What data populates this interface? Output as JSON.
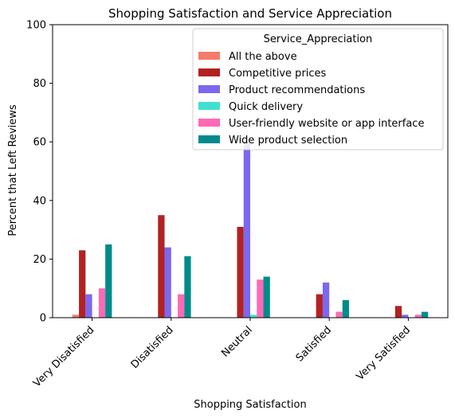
{
  "chart_data": {
    "type": "bar",
    "title": "Shopping Satisfaction and Service Appreciation",
    "xlabel": "Shopping Satisfaction",
    "ylabel": "Percent that Left Reviews",
    "ylim": [
      0,
      100
    ],
    "yticks": [
      0,
      20,
      40,
      60,
      80,
      100
    ],
    "grid": false,
    "categories": [
      "Very Disatisfied",
      "Disatisfied",
      "Neutral",
      "Satisfied",
      "Very Satisfied"
    ],
    "legend": {
      "title": "Service_Appreciation",
      "placement": "top-right"
    },
    "series": [
      {
        "name": "All the above",
        "color": "#f47c6a",
        "values": [
          1,
          0,
          0,
          0,
          0
        ]
      },
      {
        "name": "Competitive prices",
        "color": "#b22222",
        "values": [
          23,
          35,
          31,
          8,
          4
        ]
      },
      {
        "name": "Product recommendations",
        "color": "#7b68ee",
        "values": [
          8,
          24,
          60,
          12,
          1
        ]
      },
      {
        "name": "Quick delivery",
        "color": "#40e0d0",
        "values": [
          0,
          0,
          1,
          0,
          0
        ]
      },
      {
        "name": "User-friendly website or app interface",
        "color": "#ff69b4",
        "values": [
          10,
          8,
          13,
          2,
          1
        ]
      },
      {
        "name": "Wide product selection",
        "color": "#008b8b",
        "values": [
          25,
          21,
          14,
          6,
          2
        ]
      }
    ]
  }
}
